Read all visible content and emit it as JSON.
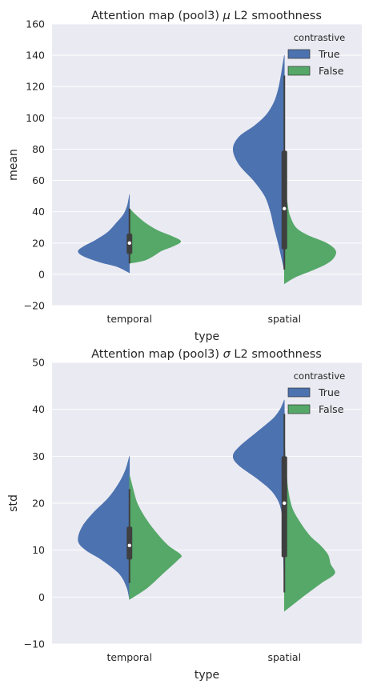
{
  "colors": {
    "plot_bg": "#EAEAF2",
    "grid": "#FFFFFF",
    "true": "#4C72B0",
    "false": "#55A868",
    "box": "#3F3F3F",
    "median": "#FFFFFF"
  },
  "chart_data": [
    {
      "type": "violin",
      "title_parts": [
        "Attention map (pool3) ",
        "μ",
        " L2 smoothness"
      ],
      "xlabel": "type",
      "ylabel": "mean",
      "categories": [
        "temporal",
        "spatial"
      ],
      "ylim": [
        -20,
        160
      ],
      "yticks": [
        -20,
        0,
        20,
        40,
        60,
        80,
        100,
        120,
        140,
        160
      ],
      "yticklabels": [
        "−20",
        "0",
        "20",
        "40",
        "60",
        "80",
        "100",
        "120",
        "140",
        "160"
      ],
      "split": true,
      "grid": true,
      "legend": {
        "title": "contrastive",
        "placement": "top-right",
        "entries": [
          "True",
          "False"
        ]
      },
      "series": [
        {
          "name": "True",
          "violins": [
            {
              "category": "temporal",
              "density": [
                [
                  1,
                  0
                ],
                [
                  5,
                  0.25
                ],
                [
                  8,
                  0.6
                ],
                [
                  12,
                  0.92
                ],
                [
                  15,
                  1.0
                ],
                [
                  18,
                  0.88
                ],
                [
                  22,
                  0.65
                ],
                [
                  27,
                  0.42
                ],
                [
                  33,
                  0.25
                ],
                [
                  38,
                  0.12
                ],
                [
                  43,
                  0.05
                ],
                [
                  47,
                  0.02
                ],
                [
                  51,
                  0
                ]
              ]
            },
            {
              "category": "spatial",
              "density": [
                [
                  3,
                  0
                ],
                [
                  10,
                  0.05
                ],
                [
                  20,
                  0.12
                ],
                [
                  30,
                  0.2
                ],
                [
                  40,
                  0.27
                ],
                [
                  50,
                  0.38
                ],
                [
                  60,
                  0.6
                ],
                [
                  70,
                  0.88
                ],
                [
                  80,
                  1.0
                ],
                [
                  88,
                  0.88
                ],
                [
                  95,
                  0.58
                ],
                [
                  102,
                  0.35
                ],
                [
                  110,
                  0.2
                ],
                [
                  118,
                  0.12
                ],
                [
                  126,
                  0.07
                ],
                [
                  134,
                  0.03
                ],
                [
                  140,
                  0
                ]
              ]
            }
          ]
        },
        {
          "name": "False",
          "violins": [
            {
              "category": "temporal",
              "density": [
                [
                  7,
                  0
                ],
                [
                  9,
                  0.3
                ],
                [
                  12,
                  0.48
                ],
                [
                  15,
                  0.62
                ],
                [
                  18,
                  0.85
                ],
                [
                  21,
                  1.0
                ],
                [
                  24,
                  0.85
                ],
                [
                  28,
                  0.55
                ],
                [
                  33,
                  0.3
                ],
                [
                  38,
                  0.12
                ],
                [
                  42,
                  0
                ]
              ]
            },
            {
              "category": "spatial",
              "density": [
                [
                  -6,
                  0
                ],
                [
                  -2,
                  0.2
                ],
                [
                  2,
                  0.5
                ],
                [
                  6,
                  0.78
                ],
                [
                  10,
                  0.95
                ],
                [
                  15,
                  1.0
                ],
                [
                  20,
                  0.82
                ],
                [
                  25,
                  0.45
                ],
                [
                  30,
                  0.22
                ],
                [
                  38,
                  0.1
                ],
                [
                  45,
                  0.06
                ],
                [
                  52,
                  0.03
                ],
                [
                  58,
                  0
                ]
              ]
            }
          ]
        }
      ],
      "boxes": [
        {
          "category": "temporal",
          "q1": 13,
          "median": 20,
          "q3": 26,
          "whisker_low": 7,
          "whisker_high": 42
        },
        {
          "category": "spatial",
          "q1": 16,
          "median": 42,
          "q3": 79,
          "whisker_low": 3,
          "whisker_high": 127
        }
      ]
    },
    {
      "type": "violin",
      "title_parts": [
        "Attention map (pool3) ",
        "σ",
        " L2 smoothness"
      ],
      "xlabel": "type",
      "ylabel": "std",
      "categories": [
        "temporal",
        "spatial"
      ],
      "ylim": [
        -10,
        50
      ],
      "yticks": [
        -10,
        0,
        10,
        20,
        30,
        40,
        50
      ],
      "yticklabels": [
        "−10",
        "0",
        "10",
        "20",
        "30",
        "40",
        "50"
      ],
      "split": true,
      "grid": true,
      "legend": {
        "title": "contrastive",
        "placement": "top-right",
        "entries": [
          "True",
          "False"
        ]
      },
      "series": [
        {
          "name": "True",
          "violins": [
            {
              "category": "temporal",
              "density": [
                [
                  -0.5,
                  0
                ],
                [
                  2,
                  0.05
                ],
                [
                  5,
                  0.2
                ],
                [
                  8,
                  0.55
                ],
                [
                  10,
                  0.85
                ],
                [
                  12,
                  1.0
                ],
                [
                  15,
                  0.92
                ],
                [
                  18,
                  0.7
                ],
                [
                  21,
                  0.42
                ],
                [
                  24,
                  0.22
                ],
                [
                  27,
                  0.08
                ],
                [
                  30,
                  0
                ]
              ]
            },
            {
              "category": "spatial",
              "density": [
                [
                  1,
                  0
                ],
                [
                  10,
                  0.02
                ],
                [
                  18,
                  0.05
                ],
                [
                  22,
                  0.2
                ],
                [
                  25,
                  0.5
                ],
                [
                  28,
                  0.88
                ],
                [
                  30,
                  1.0
                ],
                [
                  32,
                  0.88
                ],
                [
                  35,
                  0.55
                ],
                [
                  38,
                  0.22
                ],
                [
                  40,
                  0.08
                ],
                [
                  42,
                  0
                ]
              ]
            }
          ]
        },
        {
          "name": "False",
          "violins": [
            {
              "category": "temporal",
              "density": [
                [
                  -0.5,
                  0
                ],
                [
                  2,
                  0.35
                ],
                [
                  5,
                  0.65
                ],
                [
                  8,
                  0.95
                ],
                [
                  9,
                  1.0
                ],
                [
                  11,
                  0.75
                ],
                [
                  14,
                  0.5
                ],
                [
                  17,
                  0.3
                ],
                [
                  20,
                  0.15
                ],
                [
                  23,
                  0.07
                ],
                [
                  26,
                  0
                ]
              ]
            },
            {
              "category": "spatial",
              "density": [
                [
                  -3,
                  0
                ],
                [
                  0,
                  0.35
                ],
                [
                  3,
                  0.72
                ],
                [
                  5,
                  0.98
                ],
                [
                  7,
                  0.9
                ],
                [
                  9,
                  0.85
                ],
                [
                  11,
                  0.7
                ],
                [
                  13,
                  0.5
                ],
                [
                  16,
                  0.3
                ],
                [
                  19,
                  0.15
                ],
                [
                  23,
                  0.07
                ],
                [
                  28,
                  0.03
                ],
                [
                  33,
                  0
                ]
              ]
            }
          ]
        }
      ],
      "boxes": [
        {
          "category": "temporal",
          "q1": 8,
          "median": 11,
          "q3": 15,
          "whisker_low": 3,
          "whisker_high": 23
        },
        {
          "category": "spatial",
          "q1": 8.5,
          "median": 20,
          "q3": 30,
          "whisker_low": 1,
          "whisker_high": 39
        }
      ]
    }
  ]
}
